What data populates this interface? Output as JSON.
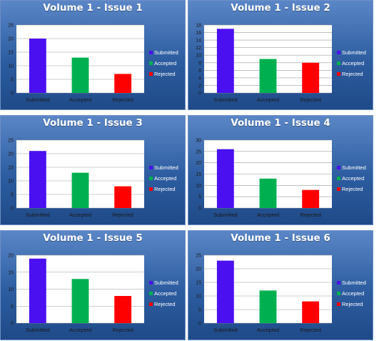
{
  "colors": {
    "submitted": "#4a10f0",
    "accepted": "#00b050",
    "rejected": "#ff0000",
    "plot_bg": "#ffffff",
    "grid": "#9a9a9a",
    "legend_text": "#ffffff",
    "axis_text": "#1a1a1a"
  },
  "chart_data": [
    {
      "type": "bar",
      "title": "Volume 1 - Issue 1",
      "categories": [
        "Submitted",
        "Accepted",
        "Rejected"
      ],
      "values": [
        20,
        13,
        7
      ],
      "ylim": [
        0,
        25
      ],
      "yticks": [
        0,
        5,
        10,
        15,
        20,
        25
      ],
      "legend": [
        "Submitted",
        "Accepted",
        "Rejected"
      ],
      "legend_position": "right",
      "grid": true
    },
    {
      "type": "bar",
      "title": "Volume 1 - Issue 2",
      "categories": [
        "Submitted",
        "Accepted",
        "Rejected"
      ],
      "values": [
        17,
        9,
        8
      ],
      "ylim": [
        0,
        18
      ],
      "yticks": [
        0,
        2,
        4,
        6,
        8,
        10,
        12,
        14,
        16,
        18
      ],
      "legend": [
        "Submitted",
        "Accepted",
        "Rejected"
      ],
      "legend_position": "right",
      "grid": true
    },
    {
      "type": "bar",
      "title": "Volume 1 - Issue 3",
      "categories": [
        "Submitted",
        "Accepted",
        "Rejected"
      ],
      "values": [
        21,
        13,
        8
      ],
      "ylim": [
        0,
        25
      ],
      "yticks": [
        0,
        5,
        10,
        15,
        20,
        25
      ],
      "legend": [
        "Submitted",
        "Accepted",
        "Rejected"
      ],
      "legend_position": "right",
      "grid": true
    },
    {
      "type": "bar",
      "title": "Volume 1 - Issue 4",
      "categories": [
        "Submitted",
        "Accepted",
        "Rejected"
      ],
      "values": [
        26,
        13,
        8
      ],
      "ylim": [
        0,
        30
      ],
      "yticks": [
        0,
        5,
        10,
        15,
        20,
        25,
        30
      ],
      "legend": [
        "Submitted",
        "Accepted",
        "Rejected"
      ],
      "legend_position": "right",
      "grid": true
    },
    {
      "type": "bar",
      "title": "Volume 1 - Issue 5",
      "categories": [
        "Submitted",
        "Accepted",
        "Rejected"
      ],
      "values": [
        19,
        13,
        8
      ],
      "ylim": [
        0,
        20
      ],
      "yticks": [
        0,
        5,
        10,
        15,
        20
      ],
      "legend": [
        "Submitted",
        "Accepted",
        "Rejected"
      ],
      "legend_position": "right",
      "grid": true
    },
    {
      "type": "bar",
      "title": "Volume 1 - Issue 6",
      "categories": [
        "Submitted",
        "Accepted",
        "Rejected"
      ],
      "values": [
        23,
        12,
        8
      ],
      "ylim": [
        0,
        25
      ],
      "yticks": [
        0,
        5,
        10,
        15,
        20,
        25
      ],
      "legend": [
        "Submitted",
        "Accepted",
        "Rejected"
      ],
      "legend_position": "right",
      "grid": true
    }
  ]
}
